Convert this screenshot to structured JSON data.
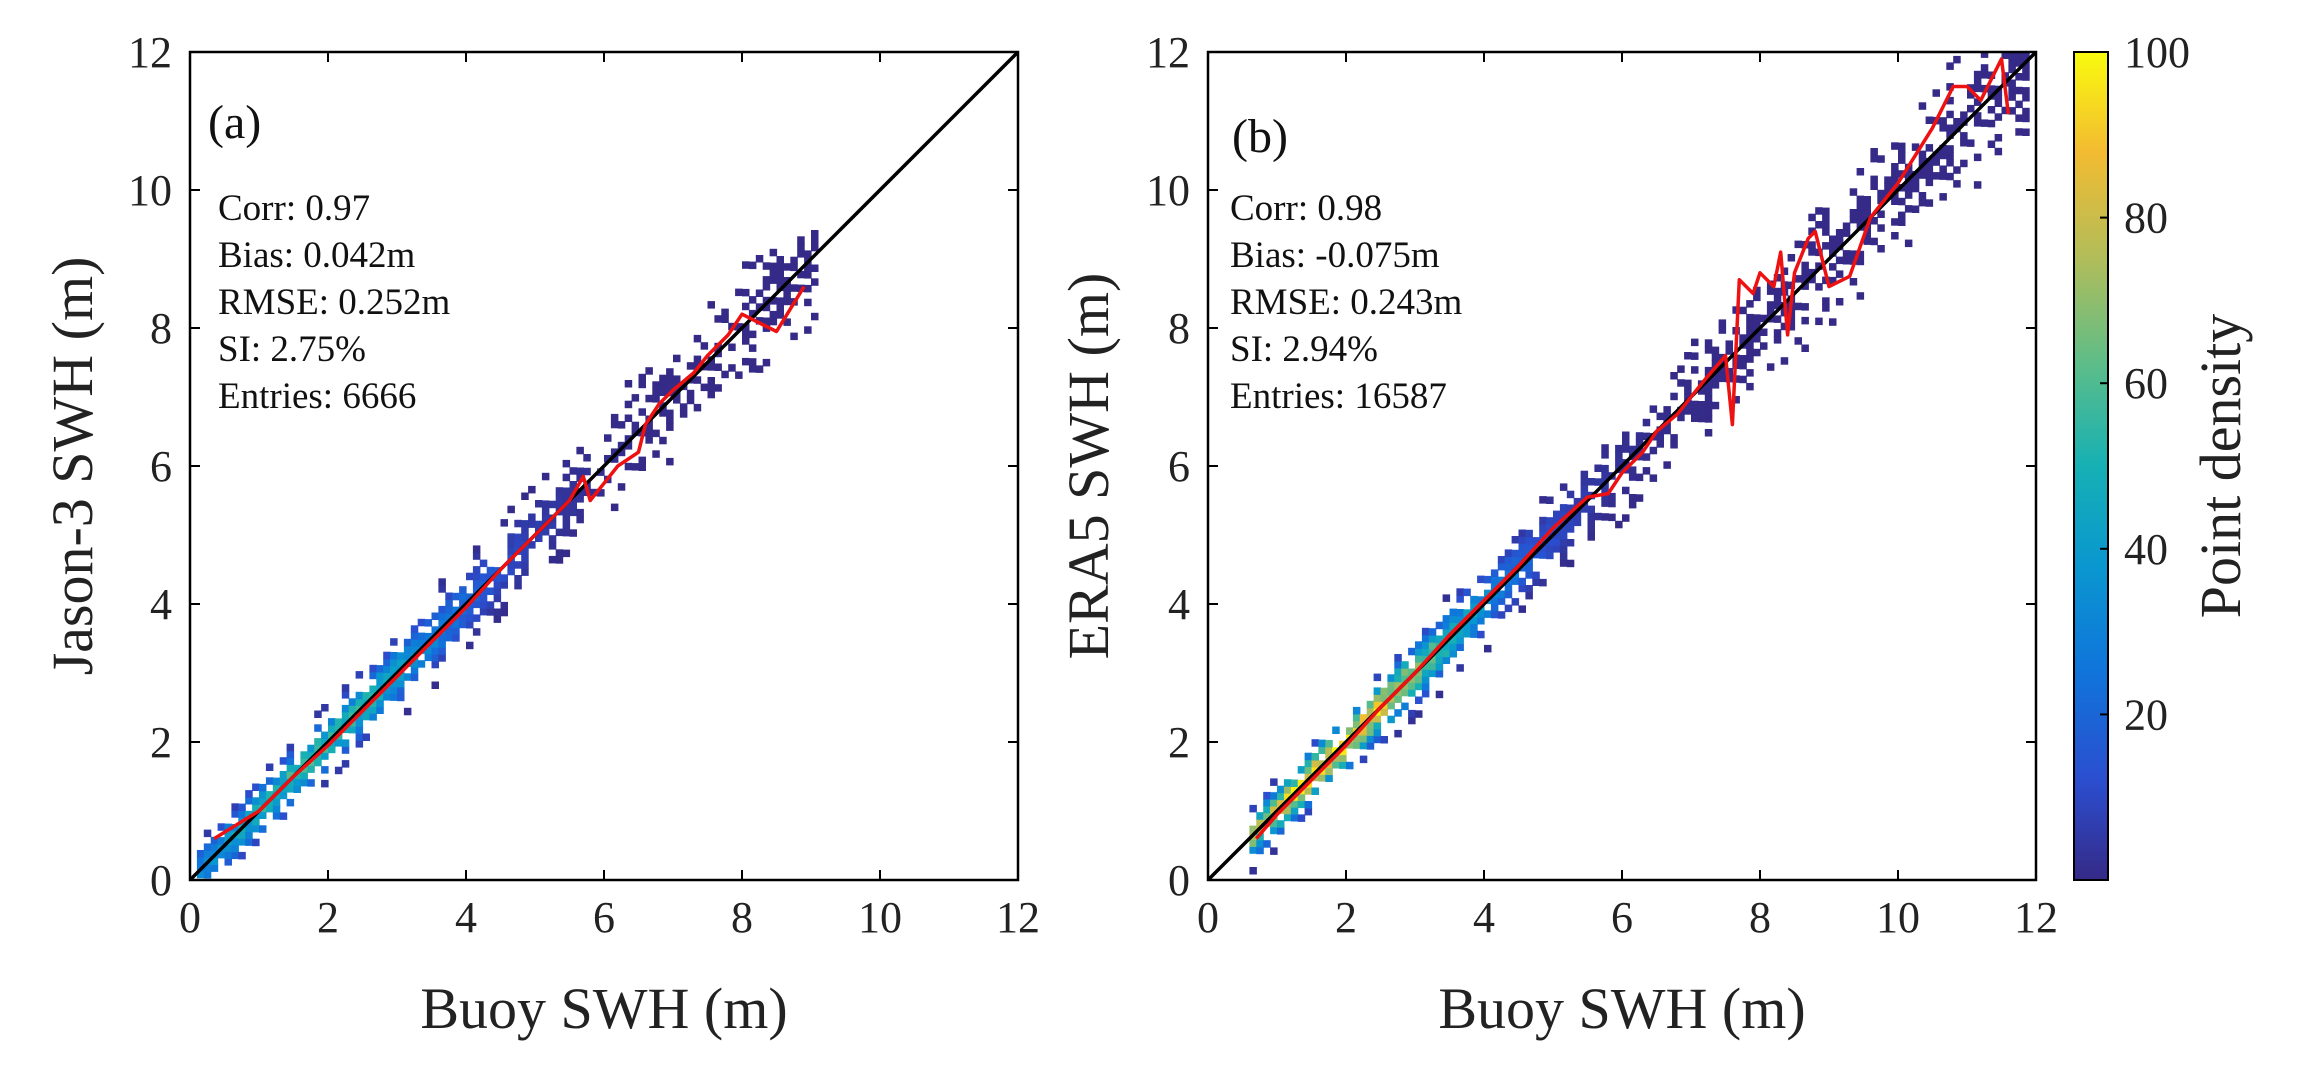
{
  "chart_data": [
    {
      "type": "scatter",
      "panel_label": "(a)",
      "xlabel": "Buoy SWH (m)",
      "ylabel": "Jason-3 SWH (m)",
      "xlim": [
        0,
        12
      ],
      "ylim": [
        0,
        12
      ],
      "xticks": [
        "0",
        "2",
        "4",
        "6",
        "8",
        "10",
        "12"
      ],
      "yticks": [
        "0",
        "2",
        "4",
        "6",
        "8",
        "10",
        "12"
      ],
      "stats": [
        "Corr: 0.97",
        "Bias: 0.042m",
        "RMSE: 0.252m",
        "SI: 2.75%",
        "Entries: 6666"
      ],
      "reference_line": {
        "name": "1:1 line",
        "x": [
          0,
          12
        ],
        "y": [
          0,
          12
        ],
        "color": "#000000"
      },
      "mean_line": {
        "name": "binned mean",
        "color": "#ee1111",
        "x": [
          0.35,
          1.0,
          1.5,
          2.0,
          2.5,
          3.0,
          3.5,
          4.0,
          4.5,
          5.0,
          5.3,
          5.5,
          5.7,
          5.8,
          6.0,
          6.2,
          6.5,
          6.6,
          6.8,
          7.0,
          7.3,
          7.5,
          7.8,
          8.0,
          8.5,
          8.9
        ],
        "y": [
          0.6,
          1.0,
          1.5,
          1.95,
          2.45,
          2.95,
          3.45,
          3.95,
          4.5,
          5.0,
          5.3,
          5.5,
          5.85,
          5.5,
          5.75,
          6.0,
          6.2,
          6.6,
          6.9,
          7.1,
          7.35,
          7.6,
          7.9,
          8.2,
          7.95,
          8.6
        ]
      },
      "density_cloud": {
        "colormap": "parula",
        "x_range": [
          0.1,
          9.0
        ],
        "spread_low": 0.35,
        "spread_high": 0.7,
        "peak": 60
      }
    },
    {
      "type": "scatter",
      "panel_label": "(b)",
      "xlabel": "Buoy SWH (m)",
      "ylabel": "ERA5 SWH (m)",
      "xlim": [
        0,
        12
      ],
      "ylim": [
        0,
        12
      ],
      "xticks": [
        "0",
        "2",
        "4",
        "6",
        "8",
        "10",
        "12"
      ],
      "yticks": [
        "0",
        "2",
        "4",
        "6",
        "8",
        "10",
        "12"
      ],
      "stats": [
        "Corr: 0.98",
        "Bias: -0.075m",
        "RMSE: 0.243m",
        "SI: 2.94%",
        "Entries: 16587"
      ],
      "reference_line": {
        "name": "1:1 line",
        "x": [
          0,
          12
        ],
        "y": [
          0,
          12
        ],
        "color": "#000000"
      },
      "mean_line": {
        "name": "binned mean",
        "color": "#ee1111",
        "x": [
          0.7,
          1.0,
          1.5,
          2.0,
          2.5,
          3.0,
          3.5,
          4.0,
          4.5,
          5.0,
          5.5,
          5.8,
          6.0,
          6.3,
          6.5,
          6.8,
          7.0,
          7.2,
          7.5,
          7.6,
          7.7,
          7.9,
          8.0,
          8.2,
          8.3,
          8.4,
          8.5,
          8.7,
          8.8,
          9.0,
          9.3,
          9.6,
          10.0,
          10.5,
          10.8,
          11.0,
          11.2,
          11.5,
          11.6
        ],
        "y": [
          0.6,
          0.95,
          1.45,
          1.95,
          2.5,
          3.0,
          3.55,
          4.05,
          4.55,
          5.1,
          5.55,
          5.6,
          5.9,
          6.2,
          6.5,
          6.75,
          7.0,
          7.25,
          7.6,
          6.6,
          8.7,
          8.5,
          8.8,
          8.6,
          9.1,
          7.9,
          8.8,
          9.3,
          9.4,
          8.6,
          8.75,
          9.6,
          10.1,
          10.9,
          11.5,
          11.5,
          11.3,
          11.9,
          11.1
        ]
      },
      "density_cloud": {
        "colormap": "parula",
        "x_range": [
          0.6,
          11.8
        ],
        "spread_low": 0.3,
        "spread_high": 0.7,
        "peak": 100
      }
    }
  ],
  "colorbar": {
    "label": "Point density",
    "min": 0,
    "max": 100,
    "ticks": [
      "20",
      "40",
      "60",
      "80",
      "100"
    ],
    "tick_values": [
      20,
      40,
      60,
      80,
      100
    ],
    "colormap": "parula"
  }
}
